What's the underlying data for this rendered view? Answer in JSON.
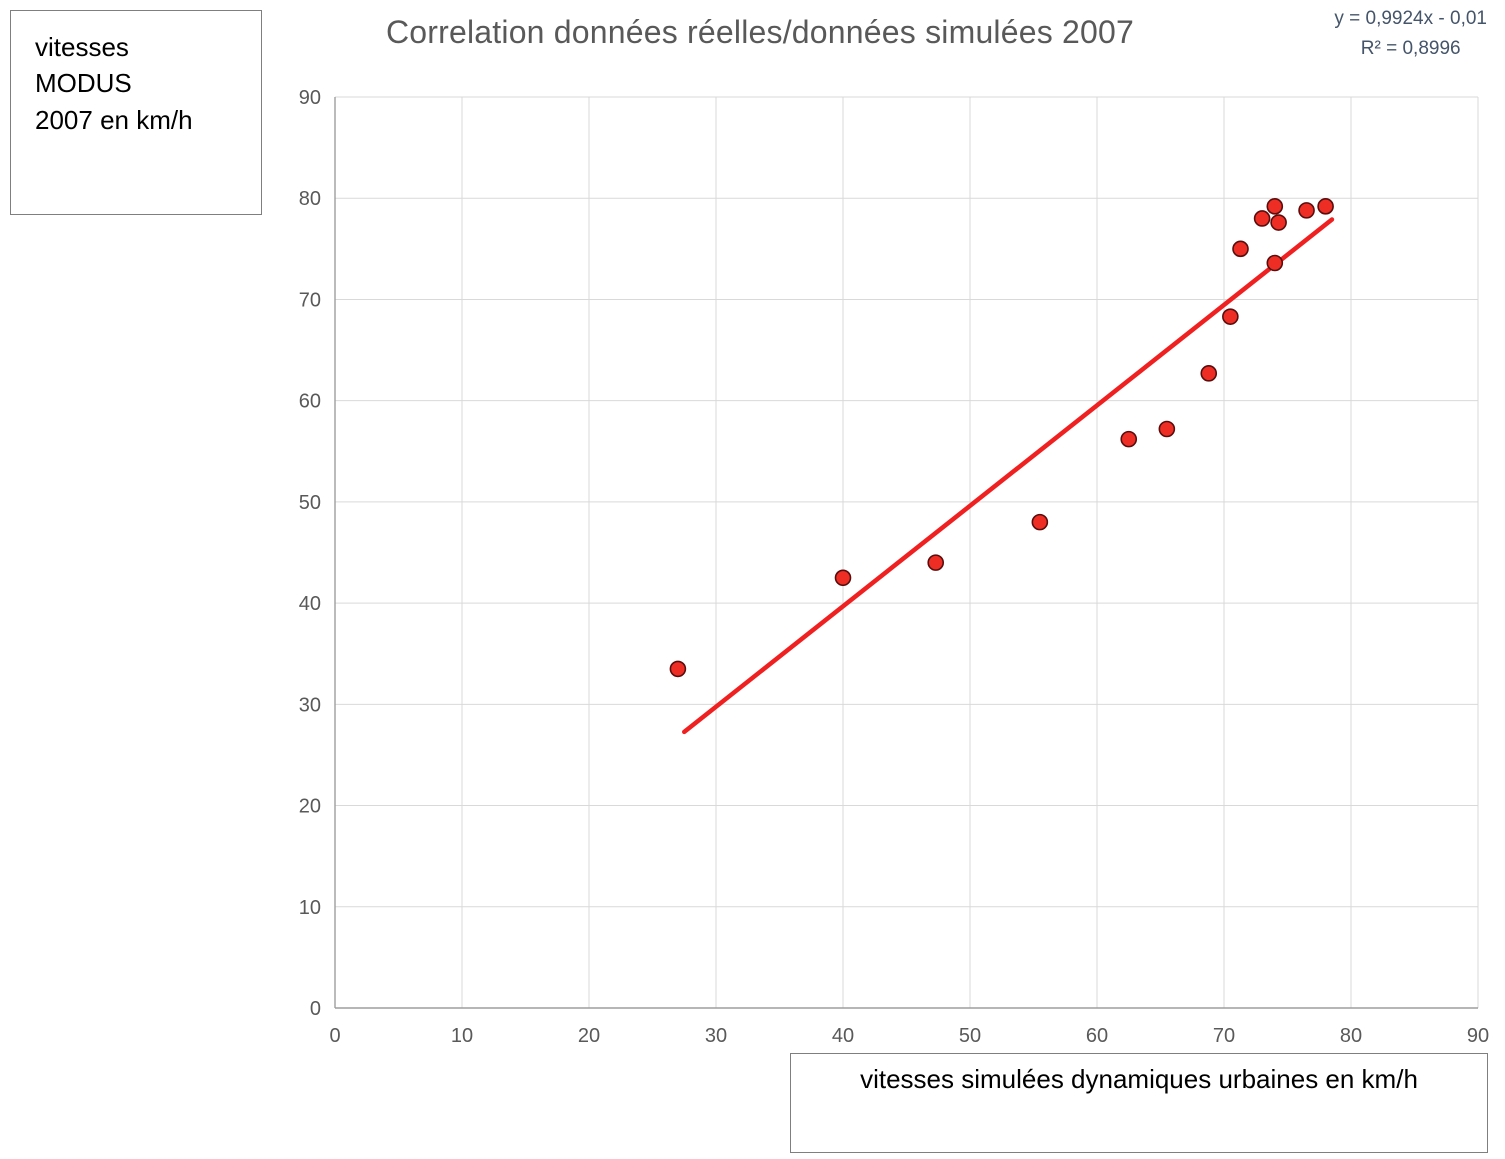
{
  "title": "Correlation données réelles/données simulées 2007",
  "equation": {
    "line1": "y = 0,9924x - 0,01",
    "line2": "R² = 0,8996"
  },
  "y_axis_box": {
    "lines": [
      "vitesses",
      "MODUS",
      "2007 en km/h"
    ]
  },
  "x_axis_box": {
    "label": "vitesses simulées dynamiques urbaines en km/h"
  },
  "chart_data": {
    "type": "scatter",
    "title": "Correlation données réelles/données simulées 2007",
    "xlabel": "vitesses simulées dynamiques urbaines en km/h",
    "ylabel": "vitesses MODUS 2007 en km/h",
    "xlim": [
      0,
      90
    ],
    "ylim": [
      0,
      90
    ],
    "tick_step": 10,
    "grid": true,
    "points": [
      [
        27,
        33.5
      ],
      [
        40,
        42.5
      ],
      [
        47.3,
        44
      ],
      [
        55.5,
        48
      ],
      [
        62.5,
        56.2
      ],
      [
        65.5,
        57.2
      ],
      [
        68.8,
        62.7
      ],
      [
        70.5,
        68.3
      ],
      [
        71.3,
        75
      ],
      [
        73,
        78
      ],
      [
        74,
        79.2
      ],
      [
        74.3,
        77.6
      ],
      [
        74,
        73.6
      ],
      [
        76.5,
        78.8
      ],
      [
        78,
        79.2
      ]
    ],
    "trendline": {
      "slope": 0.9924,
      "intercept": -0.01,
      "x_start": 27.5,
      "x_end": 78.5,
      "equation": "y = 0,9924x - 0,01",
      "r_squared": "R² = 0,8996"
    },
    "colors": {
      "marker_fill": "#ee2e24",
      "marker_edge": "#5a0d0d",
      "trendline": "#f02020",
      "gridline": "#d9d9d9",
      "axis_line": "#9e9e9e",
      "tick_text": "#595959",
      "title_text": "#595959",
      "equation_text": "#44546A"
    }
  }
}
